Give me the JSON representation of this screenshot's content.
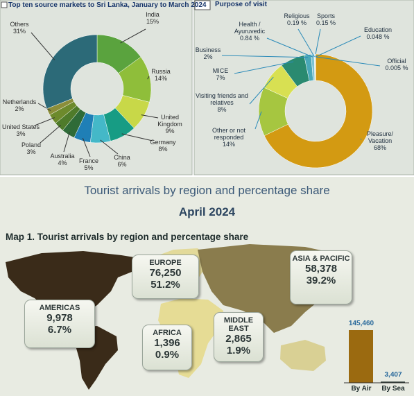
{
  "chart_data": [
    {
      "type": "pie",
      "title": "Top ten source markets to Sri Lanka, January to March 2024",
      "categories": [
        "India",
        "Russia",
        "United Kingdom",
        "Germany",
        "China",
        "France",
        "Australia",
        "Poland",
        "United States",
        "Netherlands",
        "Others"
      ],
      "values": [
        15,
        14,
        9,
        8,
        6,
        5,
        4,
        3,
        3,
        2,
        31
      ],
      "value_labels": [
        "15%",
        "14%",
        "9%",
        "8%",
        "6%",
        "5%",
        "4%",
        "3%",
        "3%",
        "2%",
        "31%"
      ],
      "colors": [
        "#5aa33e",
        "#8fbe3a",
        "#c8d848",
        "#179c84",
        "#44b8c8",
        "#1f7fb6",
        "#2f6b38",
        "#4f7b2a",
        "#6d8a2c",
        "#8b8e3a",
        "#2c6a78"
      ]
    },
    {
      "type": "pie",
      "title": "Purpose of visit",
      "categories": [
        "Pleasure/ Vacation",
        "Other or not responded",
        "Visiting friends and relatives",
        "MICE",
        "Business",
        "Health / Ayuruvedic",
        "Religious",
        "Sports",
        "Education",
        "Official"
      ],
      "values": [
        68,
        14,
        8,
        7,
        2,
        0.84,
        0.19,
        0.15,
        0.048,
        0.005
      ],
      "value_labels": [
        "68%",
        "14%",
        "8%",
        "7%",
        "2%",
        "0.84 %",
        "0.19 %",
        "0.15 %",
        "0.048 %",
        "0.005 %"
      ],
      "colors": [
        "#d39a12",
        "#a6c640",
        "#d8e052",
        "#2a8a70",
        "#49a8b8",
        "#7cc2d2",
        "#9fd0dc",
        "#b8dce4",
        "#c8e4ea",
        "#d8eef2"
      ]
    },
    {
      "type": "bar",
      "categories": [
        "By Air",
        "By Sea"
      ],
      "values": [
        145460,
        3407
      ],
      "value_labels": [
        "145,460",
        "3,407"
      ],
      "colors": [
        "#9b6a10",
        "#2f3f39"
      ]
    }
  ],
  "header": {
    "title": "Tourist arrivals by region and percentage share",
    "subtitle": "April 2024"
  },
  "map": {
    "title": "Map 1. Tourist arrivals by region and percentage share",
    "regions": [
      {
        "name": "EUROPE",
        "arrivals": "76,250",
        "share": "51.2%"
      },
      {
        "name": "ASIA & PACIFIC",
        "arrivals": "58,378",
        "share": "39.2%"
      },
      {
        "name": "AMERICAS",
        "arrivals": "9,978",
        "share": "6.7%"
      },
      {
        "name": "MIDDLE EAST",
        "arrivals": "2,865",
        "share": "1.9%"
      },
      {
        "name": "AFRICA",
        "arrivals": "1,396",
        "share": "0.9%"
      }
    ]
  }
}
